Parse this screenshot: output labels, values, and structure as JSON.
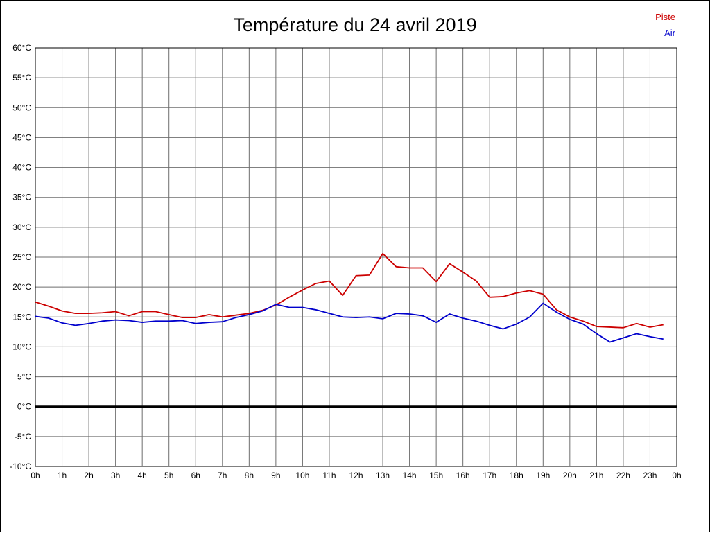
{
  "page": {
    "title": "Température du 24 avril 2019"
  },
  "legend": {
    "items": [
      {
        "label": "Piste",
        "color": "#cc0000"
      },
      {
        "label": "Air",
        "color": "#0000cc"
      }
    ]
  },
  "chart_data": {
    "type": "line",
    "title": "Température du 24 avril 2019",
    "xlabel": "",
    "ylabel": "",
    "y_unit": "°C",
    "xlim": [
      0,
      24
    ],
    "ylim": [
      -10,
      60
    ],
    "grid": true,
    "zero_line": true,
    "legend_position": "top-right",
    "x_tick_values": [
      0,
      1,
      2,
      3,
      4,
      5,
      6,
      7,
      8,
      9,
      10,
      11,
      12,
      13,
      14,
      15,
      16,
      17,
      18,
      19,
      20,
      21,
      22,
      23,
      24
    ],
    "x_tick_labels": [
      "0h",
      "1h",
      "2h",
      "3h",
      "4h",
      "5h",
      "6h",
      "7h",
      "8h",
      "9h",
      "10h",
      "11h",
      "12h",
      "13h",
      "14h",
      "15h",
      "16h",
      "17h",
      "18h",
      "19h",
      "20h",
      "21h",
      "22h",
      "23h",
      "0h"
    ],
    "y_tick_values": [
      60,
      55,
      50,
      45,
      40,
      35,
      30,
      25,
      20,
      15,
      10,
      5,
      0,
      -5,
      -10
    ],
    "y_tick_labels": [
      "60°C",
      "55°C",
      "50°C",
      "45°C",
      "40°C",
      "35°C",
      "30°C",
      "25°C",
      "20°C",
      "15°C",
      "10°C",
      "5°C",
      "0°C",
      "-5°C",
      "-10°C"
    ],
    "x": [
      0,
      0.5,
      1,
      1.5,
      2,
      2.5,
      3,
      3.5,
      4,
      4.5,
      5,
      5.5,
      6,
      6.5,
      7,
      7.5,
      8,
      8.5,
      9,
      9.5,
      10,
      10.5,
      11,
      11.5,
      12,
      12.5,
      13,
      13.5,
      14,
      14.5,
      15,
      15.5,
      16,
      16.5,
      17,
      17.5,
      18,
      18.5,
      19,
      19.5,
      20,
      20.5,
      21,
      21.5,
      22,
      22.5,
      23,
      23.5
    ],
    "series": [
      {
        "name": "Piste",
        "color": "#cc0000",
        "values": [
          17.5,
          16.8,
          16.0,
          15.6,
          15.6,
          15.7,
          15.9,
          15.2,
          15.9,
          15.9,
          15.4,
          14.9,
          14.9,
          15.4,
          15.0,
          15.3,
          15.6,
          16.1,
          17.0,
          18.3,
          19.5,
          20.6,
          21.0,
          18.6,
          21.9,
          22.0,
          25.6,
          23.4,
          23.2,
          23.2,
          20.9,
          23.9,
          22.5,
          21.0,
          18.3,
          18.4,
          19.0,
          19.4,
          18.8,
          16.2,
          15.0,
          14.3,
          13.4,
          13.3,
          13.2,
          13.9,
          13.3,
          13.7
        ]
      },
      {
        "name": "Air",
        "color": "#0000cc",
        "values": [
          15.1,
          14.8,
          14.0,
          13.6,
          13.9,
          14.3,
          14.5,
          14.4,
          14.1,
          14.3,
          14.3,
          14.4,
          13.9,
          14.1,
          14.2,
          14.9,
          15.4,
          16.0,
          17.1,
          16.6,
          16.6,
          16.2,
          15.6,
          15.0,
          14.9,
          15.0,
          14.7,
          15.6,
          15.5,
          15.2,
          14.1,
          15.5,
          14.8,
          14.3,
          13.6,
          13.0,
          13.8,
          15.0,
          17.3,
          15.8,
          14.6,
          13.8,
          12.2,
          10.8,
          11.5,
          12.2,
          11.7,
          11.3
        ]
      }
    ]
  }
}
